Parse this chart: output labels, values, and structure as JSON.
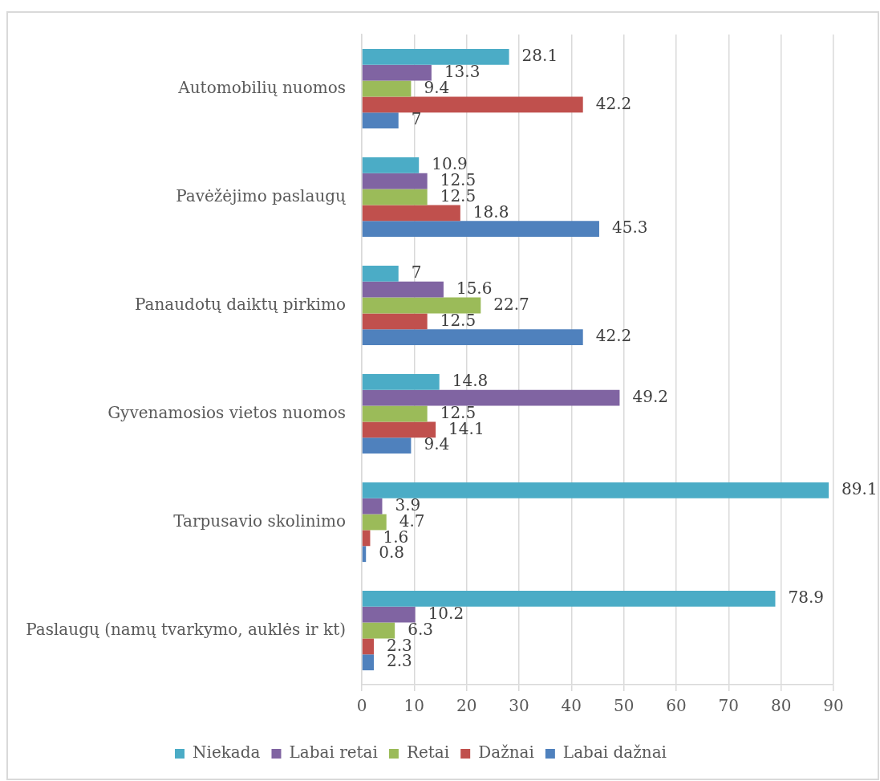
{
  "chart_data": {
    "type": "bar",
    "orientation": "horizontal",
    "categories": [
      "Automobilių nuomos",
      "Pavėžėjimo paslaugų",
      "Panaudotų daiktų pirkimo",
      "Gyvenamosios vietos nuomos",
      "Tarpusavio skolinimo",
      "Paslaugų (namų tvarkymo, auklės ir kt)"
    ],
    "series": [
      {
        "name": "Niekada",
        "color": "#4bacc6",
        "values": [
          28.1,
          10.9,
          7,
          14.8,
          89.1,
          78.9
        ]
      },
      {
        "name": "Labai retai",
        "color": "#8064a2",
        "values": [
          13.3,
          12.5,
          15.6,
          49.2,
          3.9,
          10.2
        ]
      },
      {
        "name": "Retai",
        "color": "#9bbb59",
        "values": [
          9.4,
          12.5,
          22.7,
          12.5,
          4.7,
          6.3
        ]
      },
      {
        "name": "Dažnai",
        "color": "#c0504d",
        "values": [
          42.2,
          18.8,
          12.5,
          14.1,
          1.6,
          2.3
        ]
      },
      {
        "name": "Labai dažnai",
        "color": "#4f81bd",
        "values": [
          7,
          45.3,
          42.2,
          9.4,
          0.8,
          2.3
        ]
      }
    ],
    "xlim": [
      0,
      90
    ],
    "xticks": [
      0,
      10,
      20,
      30,
      40,
      50,
      60,
      70,
      80,
      90
    ],
    "grid": "x",
    "legend": "bottom",
    "data_labels": true
  }
}
